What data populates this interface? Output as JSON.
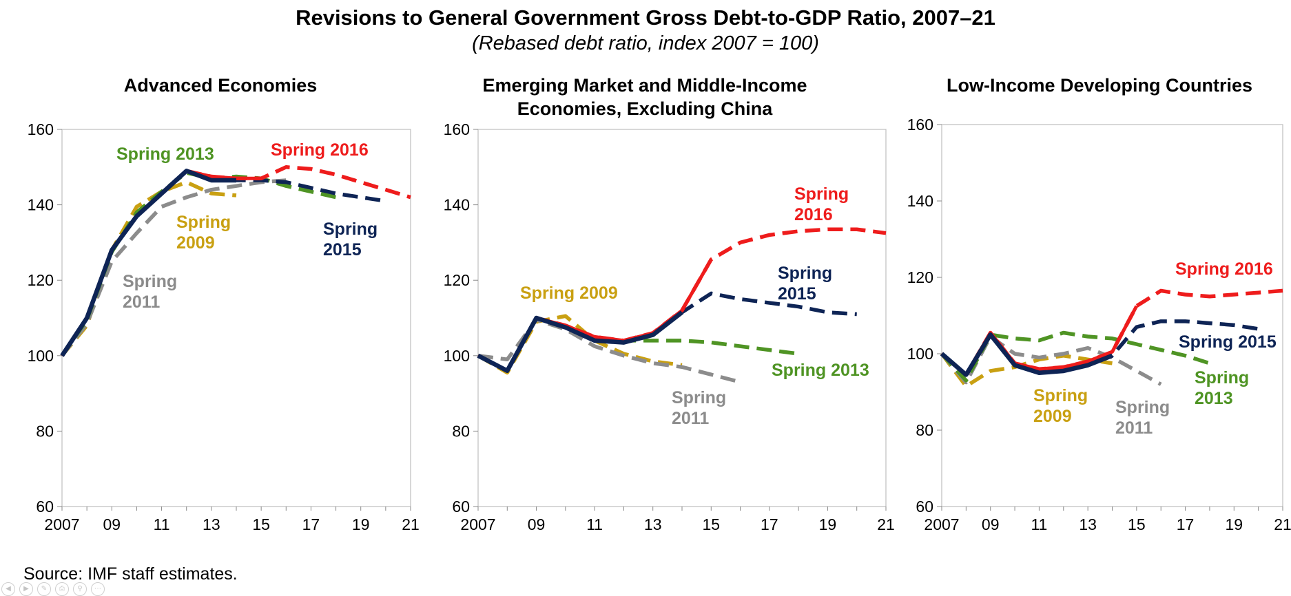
{
  "title": "Revisions to General Government Gross Debt-to-GDP Ratio, 2007–21",
  "subtitle": "(Rebased debt ratio, index 2007 = 100)",
  "source": "Source: IMF staff estimates.",
  "colors": {
    "Spring 2009": "#c9a012",
    "Spring 2011": "#8c8c8c",
    "Spring 2013": "#4f9424",
    "Spring 2015": "#0e2455",
    "Spring 2016": "#ee1c1c"
  },
  "chart_data": [
    {
      "type": "line",
      "title": "Advanced Economies",
      "ylim": [
        60,
        160
      ],
      "yticks": [
        "60",
        "80",
        "100",
        "120",
        "140",
        "160"
      ],
      "xlim": [
        2007,
        2021
      ],
      "xticks": [
        "2007",
        "09",
        "11",
        "13",
        "15",
        "17",
        "19",
        "21"
      ],
      "grid": false,
      "series": [
        {
          "name": "Spring 2009",
          "style": "dashed",
          "x": [
            2007,
            2008,
            2009,
            2010,
            2011,
            2012,
            2013,
            2014
          ],
          "values": [
            100,
            108,
            128,
            139.5,
            143.5,
            146,
            143,
            142.5
          ]
        },
        {
          "name": "Spring 2011",
          "style": "dashed",
          "x": [
            2007,
            2008,
            2009,
            2010,
            2011,
            2012,
            2013,
            2014,
            2015,
            2016
          ],
          "values": [
            100,
            108.5,
            125,
            132.5,
            139.5,
            142,
            144,
            145,
            146,
            146.5
          ]
        },
        {
          "name": "Spring 2013",
          "style": "dashed",
          "x": [
            2007,
            2008,
            2009,
            2010,
            2011,
            2012,
            2013,
            2014,
            2015,
            2016,
            2017,
            2018
          ],
          "values": [
            100,
            109.5,
            127.5,
            138,
            143.5,
            148.5,
            147,
            147.5,
            147,
            145,
            143.5,
            142
          ]
        },
        {
          "name": "Spring 2015",
          "style": "dashed",
          "x": [
            2007,
            2008,
            2009,
            2010,
            2011,
            2012,
            2013,
            2014,
            2015,
            2016,
            2017,
            2018,
            2019,
            2020
          ],
          "values": [
            100,
            110,
            128,
            137,
            143,
            149,
            146.5,
            146.5,
            146.5,
            146,
            144.5,
            143,
            142,
            141
          ]
        },
        {
          "name": "Spring 2016",
          "style": "dashed",
          "x": [
            2007,
            2008,
            2009,
            2010,
            2011,
            2012,
            2013,
            2014,
            2015,
            2016,
            2017,
            2018,
            2019,
            2020,
            2021
          ],
          "values": [
            100,
            110,
            128,
            137,
            143,
            149,
            147.5,
            147,
            147,
            150,
            149.5,
            148,
            146,
            144,
            142
          ]
        }
      ],
      "labels": [
        {
          "series": "Spring 2013",
          "lines": [
            "Spring 2013"
          ]
        },
        {
          "series": "Spring 2016",
          "lines": [
            "Spring 2016"
          ]
        },
        {
          "series": "Spring 2009",
          "lines": [
            "Spring",
            "2009"
          ]
        },
        {
          "series": "Spring 2015",
          "lines": [
            "Spring",
            "2015"
          ]
        },
        {
          "series": "Spring 2011",
          "lines": [
            "Spring",
            "2011"
          ]
        }
      ]
    },
    {
      "type": "line",
      "title": "Emerging Market and Middle-Income Economies, Excluding China",
      "title_lines": [
        "Emerging Market and Middle-Income",
        "Economies, Excluding China"
      ],
      "ylim": [
        60,
        160
      ],
      "yticks": [
        "60",
        "80",
        "100",
        "120",
        "140",
        "160"
      ],
      "xlim": [
        2007,
        2021
      ],
      "xticks": [
        "2007",
        "09",
        "11",
        "13",
        "15",
        "17",
        "19",
        "21"
      ],
      "grid": false,
      "series": [
        {
          "name": "Spring 2009",
          "style": "dashed",
          "x": [
            2007,
            2008,
            2009,
            2010,
            2011,
            2012,
            2013,
            2014
          ],
          "values": [
            100,
            95.5,
            109,
            110.5,
            104,
            100.5,
            98.5,
            97.5
          ]
        },
        {
          "name": "Spring 2011",
          "style": "dashed",
          "x": [
            2007,
            2008,
            2009,
            2010,
            2011,
            2012,
            2013,
            2014,
            2015,
            2016
          ],
          "values": [
            100,
            99,
            109.5,
            107,
            102.5,
            100,
            98,
            97,
            95,
            93
          ]
        },
        {
          "name": "Spring 2013",
          "style": "dashed",
          "x": [
            2007,
            2008,
            2009,
            2010,
            2011,
            2012,
            2013,
            2014,
            2015,
            2016,
            2017,
            2018
          ],
          "values": [
            100,
            96,
            110,
            107.5,
            104,
            104,
            104,
            104,
            103.5,
            102.5,
            101.5,
            100.5
          ]
        },
        {
          "name": "Spring 2015",
          "style": "dashed",
          "x": [
            2007,
            2008,
            2009,
            2010,
            2011,
            2012,
            2013,
            2014,
            2015,
            2016,
            2017,
            2018,
            2019,
            2020
          ],
          "values": [
            100,
            96,
            110,
            107.5,
            104,
            103.5,
            105.5,
            111.5,
            116.5,
            115,
            114,
            113,
            111.5,
            111
          ]
        },
        {
          "name": "Spring 2016",
          "style": "dashed",
          "x": [
            2007,
            2008,
            2009,
            2010,
            2011,
            2012,
            2013,
            2014,
            2015,
            2016,
            2017,
            2018,
            2019,
            2020,
            2021
          ],
          "values": [
            100,
            96,
            110,
            108,
            105,
            104,
            106,
            112,
            125.5,
            130,
            132,
            133,
            133.5,
            133.5,
            132.5
          ]
        }
      ],
      "labels": [
        {
          "series": "Spring 2016",
          "lines": [
            "Spring",
            "2016"
          ]
        },
        {
          "series": "Spring 2015",
          "lines": [
            "Spring",
            "2015"
          ]
        },
        {
          "series": "Spring 2009",
          "lines": [
            "Spring 2009"
          ]
        },
        {
          "series": "Spring 2013",
          "lines": [
            "Spring 2013"
          ]
        },
        {
          "series": "Spring 2011",
          "lines": [
            "Spring",
            "2011"
          ]
        }
      ]
    },
    {
      "type": "line",
      "title": "Low-Income Developing Countries",
      "ylim": [
        60,
        160
      ],
      "yticks": [
        "60",
        "80",
        "100",
        "120",
        "140",
        "160"
      ],
      "xlim": [
        2007,
        2021
      ],
      "xticks": [
        "2007",
        "09",
        "11",
        "13",
        "15",
        "17",
        "19",
        "21"
      ],
      "grid": false,
      "series": [
        {
          "name": "Spring 2009",
          "style": "dashed",
          "x": [
            2007,
            2008,
            2009,
            2010,
            2011,
            2012,
            2013,
            2014
          ],
          "values": [
            100,
            91.5,
            95.5,
            96.5,
            98.5,
            99.5,
            98.5,
            97.5
          ]
        },
        {
          "name": "Spring 2011",
          "style": "dashed",
          "x": [
            2007,
            2008,
            2009,
            2010,
            2011,
            2012,
            2013,
            2014,
            2015,
            2016
          ],
          "values": [
            100,
            92.5,
            104.5,
            100,
            99,
            100,
            101.5,
            99,
            95.5,
            92
          ]
        },
        {
          "name": "Spring 2013",
          "style": "dashed",
          "x": [
            2007,
            2008,
            2009,
            2010,
            2011,
            2012,
            2013,
            2014,
            2015,
            2016,
            2017,
            2018
          ],
          "values": [
            100,
            93,
            105,
            104,
            103.5,
            105.5,
            104.5,
            104,
            102.5,
            101,
            99.5,
            97.5
          ]
        },
        {
          "name": "Spring 2015",
          "style": "dashed",
          "x": [
            2007,
            2008,
            2009,
            2010,
            2011,
            2012,
            2013,
            2014,
            2015,
            2016,
            2017,
            2018,
            2019,
            2020
          ],
          "values": [
            100,
            94.5,
            105,
            97,
            95,
            95.5,
            97,
            99.5,
            107,
            108.5,
            108.5,
            108,
            107.5,
            106.5
          ]
        },
        {
          "name": "Spring 2016",
          "style": "dashed",
          "x": [
            2007,
            2008,
            2009,
            2010,
            2011,
            2012,
            2013,
            2014,
            2015,
            2016,
            2017,
            2018,
            2019,
            2020,
            2021
          ],
          "values": [
            100,
            94.5,
            105.5,
            97.5,
            96,
            96.5,
            98,
            100.5,
            112.5,
            116.5,
            115.5,
            115,
            115.5,
            116,
            116.5
          ]
        }
      ],
      "labels": [
        {
          "series": "Spring 2016",
          "lines": [
            "Spring 2016"
          ]
        },
        {
          "series": "Spring 2015",
          "lines": [
            "Spring 2015"
          ]
        },
        {
          "series": "Spring 2013",
          "lines": [
            "Spring",
            "2013"
          ]
        },
        {
          "series": "Spring 2009",
          "lines": [
            "Spring",
            "2009"
          ]
        },
        {
          "series": "Spring 2011",
          "lines": [
            "Spring",
            "2011"
          ]
        }
      ]
    }
  ]
}
